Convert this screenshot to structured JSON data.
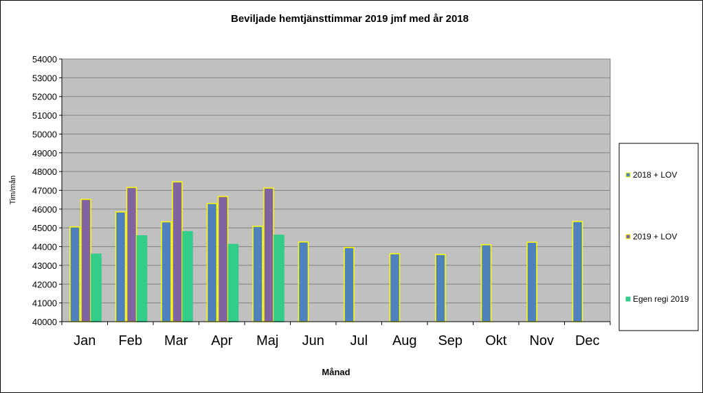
{
  "chart_data": {
    "type": "bar",
    "title": "Beviljade hemtjänsttimmar  2019 jmf med år 2018",
    "xlabel": "Månad",
    "ylabel": "Tim/mån",
    "categories": [
      "Jan",
      "Feb",
      "Mar",
      "Apr",
      "Maj",
      "Jun",
      "Jul",
      "Aug",
      "Sep",
      "Okt",
      "Nov",
      "Dec"
    ],
    "ylim": [
      40000,
      54000
    ],
    "yticks": [
      "40000",
      "41000",
      "42000",
      "43000",
      "44000",
      "45000",
      "46000",
      "47000",
      "48000",
      "49000",
      "50000",
      "51000",
      "52000",
      "53000",
      "54000"
    ],
    "grid": true,
    "legend_position": "right",
    "plot_background": "#c0c0c0",
    "series": [
      {
        "name": "2018 + LOV",
        "color": "#4f81bd",
        "edge_color": "#ffff00",
        "values": [
          45050,
          45850,
          45320,
          46300,
          45080,
          44250,
          43950,
          43620,
          43580,
          44100,
          44230,
          45340
        ]
      },
      {
        "name": "2019 + LOV",
        "color": "#8064a2",
        "edge_color": "#ffff00",
        "values": [
          46520,
          47150,
          47450,
          46670,
          47120,
          null,
          null,
          null,
          null,
          null,
          null,
          null
        ]
      },
      {
        "name": "Egen regi 2019",
        "color": "#33cc88",
        "edge_color": "#33cc88",
        "values": [
          43600,
          44580,
          44800,
          44120,
          44610,
          null,
          null,
          null,
          null,
          null,
          null,
          null
        ]
      }
    ]
  }
}
